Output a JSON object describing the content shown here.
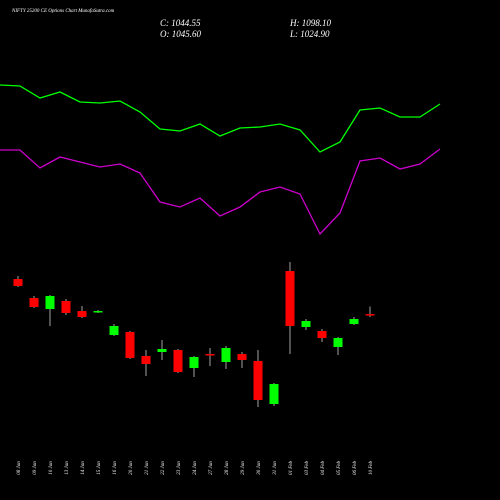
{
  "chart_data": {
    "type": "candlestick",
    "title": "NIFTY 25200 CE Options Chart MunafaSutra.com",
    "ohlc_text": {
      "close": "C: 1044.55",
      "high": "H: 1098.10",
      "open": "O: 1045.60",
      "low": "L: 1024.90"
    },
    "categories": [
      "08 Jan",
      "09 Jan",
      "10 Jan",
      "13 Jan",
      "14 Jan",
      "15 Jan",
      "16 Jan",
      "20 Jan",
      "21 Jan",
      "22 Jan",
      "23 Jan",
      "24 Jan",
      "27 Jan",
      "28 Jan",
      "29 Jan",
      "30 Jan",
      "31 Jan",
      "01 Feb",
      "03 Feb",
      "04 Feb",
      "05 Feb",
      "06 Feb",
      "10 Feb"
    ],
    "open": [
      1291,
      1158,
      1081,
      1137,
      1067,
      1060,
      899,
      920,
      752,
      780,
      794,
      668,
      766,
      710,
      766,
      717,
      416,
      1347,
      955,
      927,
      815,
      976,
      1045.6
    ],
    "high": [
      1312,
      1172,
      1179,
      1151,
      1102,
      1074,
      976,
      927,
      794,
      864,
      801,
      752,
      808,
      822,
      780,
      794,
      563,
      1410,
      1011,
      941,
      885,
      1025,
      1098.1
    ],
    "low": [
      1235,
      1088,
      962,
      1039,
      1018,
      1053,
      892,
      731,
      612,
      724,
      633,
      605,
      682,
      661,
      668,
      395,
      402,
      766,
      934,
      850,
      759,
      969,
      1024.9
    ],
    "close": [
      1242,
      1095,
      1172,
      1053,
      1025,
      1067,
      962,
      738,
      696,
      801,
      640,
      745,
      759,
      808,
      724,
      444,
      556,
      962,
      997,
      878,
      878,
      1011,
      1044.55
    ],
    "up_color": "#00ff00",
    "down_color": "#ff0000",
    "series": [
      {
        "color": "#00ff00",
        "values": [
          2649,
          2642,
          2558,
          2600,
          2530,
          2523,
          2537,
          2460,
          2341,
          2327,
          2376,
          2292,
          2348,
          2355,
          2376,
          2334,
          2180,
          2250,
          2474,
          2488,
          2425,
          2425,
          2516
        ]
      },
      {
        "color": "#cc00cc",
        "values": [
          2194,
          2194,
          2068,
          2145,
          2110,
          2075,
          2096,
          2033,
          1830,
          1795,
          1858,
          1732,
          1795,
          1900,
          1935,
          1886,
          1606,
          1753,
          2117,
          2138,
          2061,
          2096,
          2201
        ]
      }
    ],
    "ylim": [
      -256,
      3244
    ]
  }
}
